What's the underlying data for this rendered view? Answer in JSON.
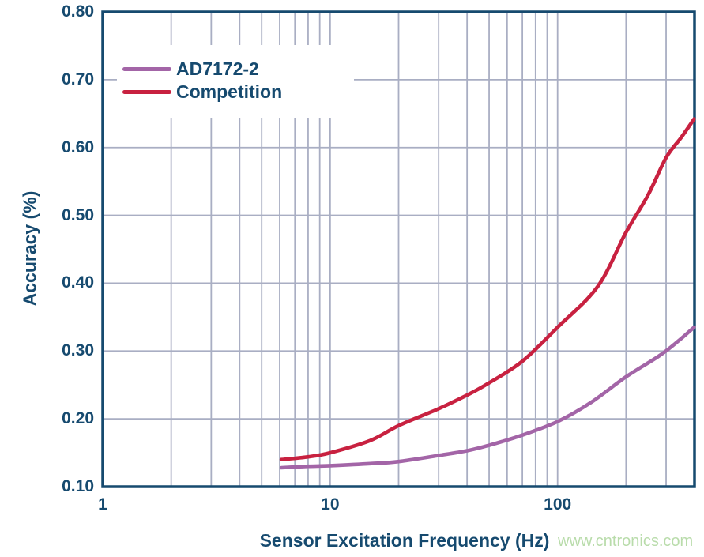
{
  "theme": {
    "frame_color": "#164a6f",
    "text_color": "#164a6f",
    "grid_color": "#a9aec3",
    "background": "#ffffff"
  },
  "watermark": {
    "text": "www.cntronics.com",
    "color": "#b9dcab"
  },
  "chart_data": {
    "type": "line",
    "title": "",
    "xlabel": "Sensor Excitation Frequency (Hz)",
    "ylabel": "Accuracy (%)",
    "x_scale": "log",
    "xlim": [
      1,
      400
    ],
    "ylim": [
      0.1,
      0.8
    ],
    "x_ticks": [
      1,
      10,
      100
    ],
    "y_ticks": [
      0.1,
      0.2,
      0.3,
      0.4,
      0.5,
      0.6,
      0.7,
      0.8
    ],
    "grid": true,
    "minor_gridlines": "log-decades",
    "legend_position": "top-left",
    "series": [
      {
        "name": "AD7172-2",
        "color": "#a365a7",
        "x": [
          6.1,
          8,
          10,
          15,
          20,
          30,
          40,
          50,
          70,
          100,
          140,
          200,
          280,
          340,
          398
        ],
        "y": [
          0.128,
          0.13,
          0.131,
          0.134,
          0.137,
          0.146,
          0.153,
          0.161,
          0.176,
          0.196,
          0.224,
          0.262,
          0.293,
          0.315,
          0.335
        ]
      },
      {
        "name": "Competition",
        "color": "#c82140",
        "x": [
          6.1,
          8,
          10,
          15,
          20,
          30,
          40,
          50,
          70,
          100,
          150,
          200,
          250,
          300,
          350,
          398
        ],
        "y": [
          0.14,
          0.144,
          0.15,
          0.168,
          0.19,
          0.215,
          0.235,
          0.253,
          0.285,
          0.335,
          0.395,
          0.475,
          0.53,
          0.585,
          0.615,
          0.642
        ]
      }
    ]
  }
}
